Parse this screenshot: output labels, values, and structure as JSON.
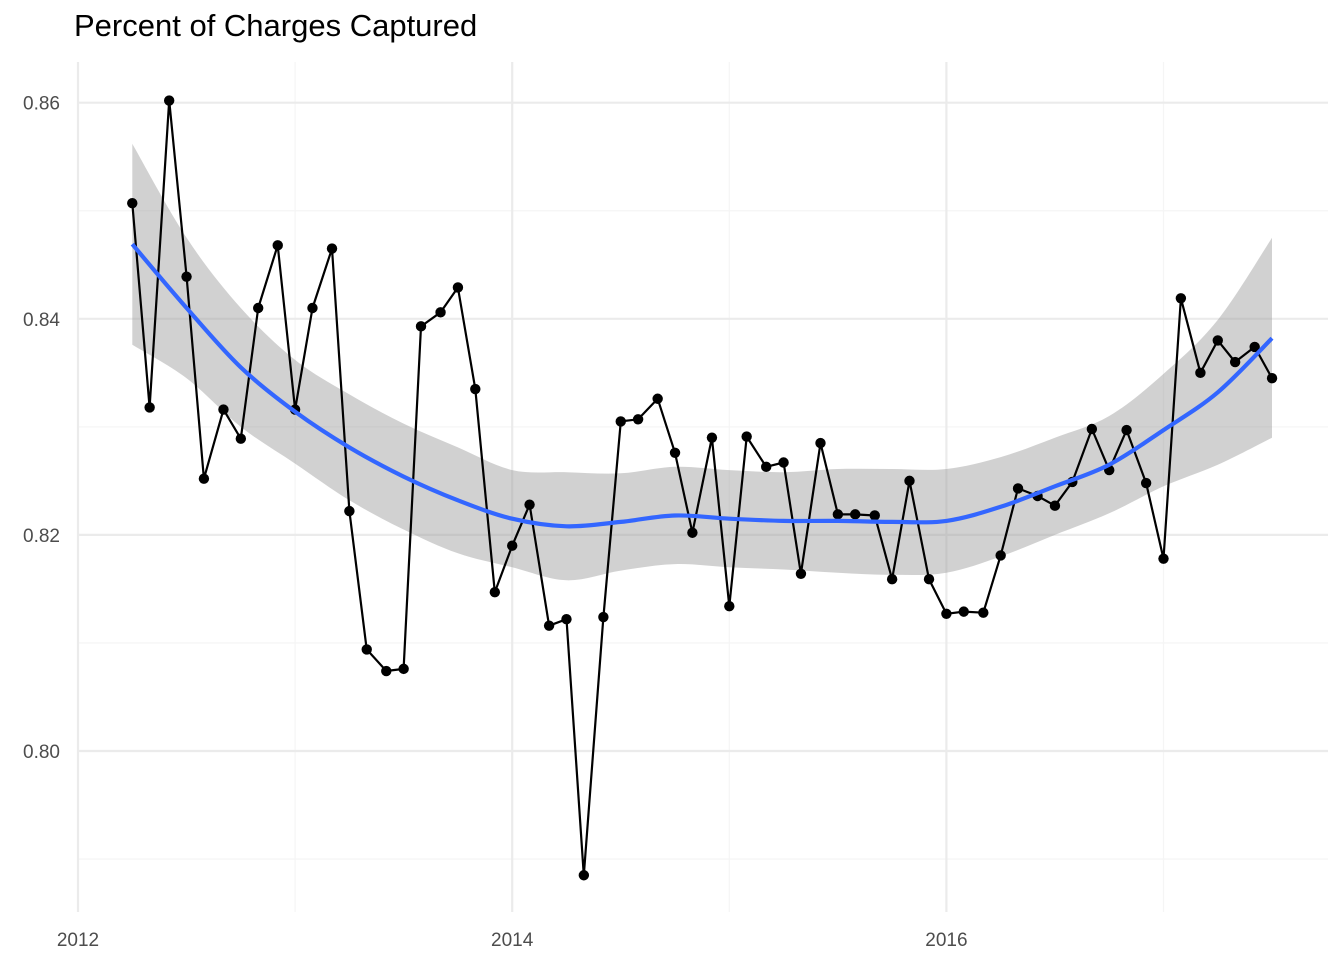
{
  "chart_data": {
    "type": "line",
    "title": "Percent of Charges Captured",
    "xlabel": "",
    "ylabel": "",
    "xlim": [
      2012.0,
      2017.6
    ],
    "ylim": [
      0.7897,
      0.864
    ],
    "x_ticks": [
      {
        "value": 2012,
        "label": "2012"
      },
      {
        "value": 2014,
        "label": "2014"
      },
      {
        "value": 2016,
        "label": "2016"
      }
    ],
    "x_minor_ticks": [
      2013,
      2015,
      2017
    ],
    "y_ticks": [
      {
        "value": 0.8,
        "label": "0.80"
      },
      {
        "value": 0.82,
        "label": "0.82"
      },
      {
        "value": 0.84,
        "label": "0.84"
      },
      {
        "value": 0.86,
        "label": "0.86"
      }
    ],
    "y_minor_ticks": [
      0.79,
      0.81,
      0.83,
      0.85
    ],
    "grid": true,
    "legend": "none",
    "colors": {
      "observed_line": "#000000",
      "observed_point": "#000000",
      "smooth_line": "#3366FF",
      "confidence_band": "#999999",
      "grid_major": "#EBEBEB",
      "grid_minor": "#F5F5F5"
    },
    "series": [
      {
        "kind": "observed",
        "x": [
          2012.25,
          2012.33,
          2012.42,
          2012.5,
          2012.58,
          2012.67,
          2012.75,
          2012.83,
          2012.92,
          2013.0,
          2013.08,
          2013.17,
          2013.25,
          2013.33,
          2013.42,
          2013.5,
          2013.58,
          2013.67,
          2013.75,
          2013.83,
          2013.92,
          2014.0,
          2014.08,
          2014.17,
          2014.25,
          2014.33,
          2014.42,
          2014.5,
          2014.58,
          2014.67,
          2014.75,
          2014.83,
          2014.92,
          2015.0,
          2015.08,
          2015.17,
          2015.25,
          2015.33,
          2015.42,
          2015.5,
          2015.58,
          2015.67,
          2015.75,
          2015.83,
          2015.92,
          2016.0,
          2016.08,
          2016.17,
          2016.25,
          2016.33,
          2016.42,
          2016.5,
          2016.58,
          2016.67,
          2016.75,
          2016.83,
          2016.92,
          2017.0,
          2017.08,
          2017.17,
          2017.25,
          2017.33,
          2017.42,
          2017.5
        ],
        "y": [
          0.8507,
          0.8318,
          0.8602,
          0.8439,
          0.8252,
          0.8316,
          0.8289,
          0.841,
          0.8468,
          0.8316,
          0.841,
          0.8465,
          0.8222,
          0.8094,
          0.8074,
          0.8076,
          0.8393,
          0.8406,
          0.8429,
          0.8335,
          0.8147,
          0.819,
          0.8228,
          0.8116,
          0.8122,
          0.7885,
          0.8124,
          0.8305,
          0.8307,
          0.8326,
          0.8276,
          0.8202,
          0.829,
          0.8134,
          0.8291,
          0.8263,
          0.8267,
          0.8164,
          0.8285,
          0.8219,
          0.8219,
          0.8218,
          0.8159,
          0.825,
          0.8159,
          0.8127,
          0.8129,
          0.8128,
          0.8181,
          0.8243,
          0.8236,
          0.8227,
          0.8249,
          0.8298,
          0.826,
          0.8297,
          0.8248,
          0.8178,
          0.8419,
          0.835,
          0.838,
          0.836,
          0.8374,
          0.8345
        ]
      },
      {
        "kind": "smooth",
        "x": [
          2012.25,
          2012.5,
          2012.75,
          2013.0,
          2013.25,
          2013.5,
          2013.75,
          2014.0,
          2014.25,
          2014.5,
          2014.75,
          2015.0,
          2015.25,
          2015.5,
          2015.75,
          2016.0,
          2016.25,
          2016.5,
          2016.75,
          2017.0,
          2017.25,
          2017.5
        ],
        "y": [
          0.8469,
          0.841,
          0.8355,
          0.8314,
          0.8281,
          0.8254,
          0.8232,
          0.8215,
          0.8208,
          0.8212,
          0.8218,
          0.8215,
          0.8213,
          0.8213,
          0.8212,
          0.8213,
          0.8226,
          0.8245,
          0.8265,
          0.8297,
          0.8332,
          0.8382
        ],
        "ci_lower": [
          0.8376,
          0.8345,
          0.83,
          0.8266,
          0.8232,
          0.8205,
          0.8183,
          0.817,
          0.8158,
          0.8167,
          0.8173,
          0.817,
          0.8168,
          0.8165,
          0.8163,
          0.8165,
          0.818,
          0.82,
          0.822,
          0.8245,
          0.8265,
          0.829
        ],
        "ci_upper": [
          0.8562,
          0.8475,
          0.841,
          0.8362,
          0.833,
          0.8303,
          0.8281,
          0.826,
          0.8258,
          0.8257,
          0.8263,
          0.826,
          0.8258,
          0.8261,
          0.8261,
          0.8261,
          0.8272,
          0.829,
          0.831,
          0.8349,
          0.8399,
          0.8475
        ]
      }
    ]
  }
}
